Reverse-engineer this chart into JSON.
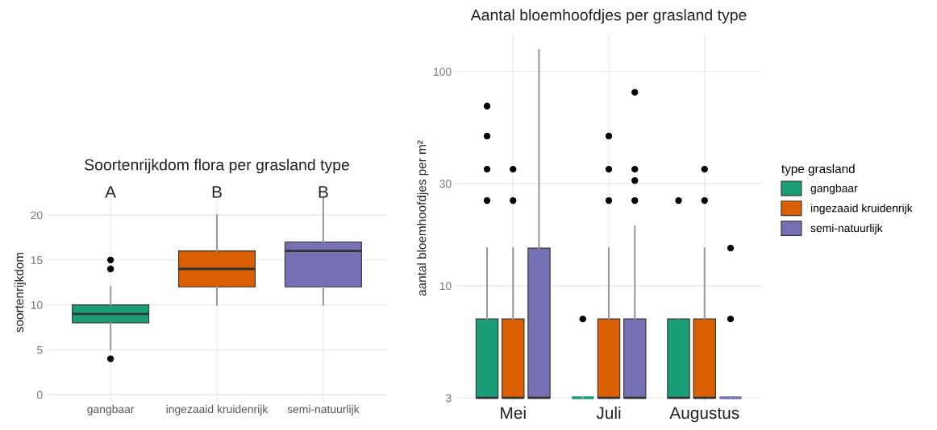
{
  "chart_data": [
    {
      "type": "box",
      "title": "Soortenrijkdom flora per grasland type",
      "ylabel": "soortenrijkdom",
      "categories": [
        "gangbaar",
        "ingezaaid kruidenrijk",
        "semi-natuurlijk"
      ],
      "colors": [
        "#1b9e77",
        "#d95f02",
        "#7570b3"
      ],
      "boxes": [
        {
          "low": 5,
          "q1": 8,
          "median": 9,
          "q3": 10,
          "high": 12,
          "outliers": [
            4,
            14,
            15
          ]
        },
        {
          "low": 10,
          "q1": 12,
          "median": 14,
          "q3": 16,
          "high": 20
        },
        {
          "low": 10,
          "q1": 12,
          "median": 16,
          "q3": 17,
          "high": 22
        }
      ],
      "ylim": [
        -0.7,
        23.5
      ],
      "yticks": [
        0,
        5,
        10,
        15,
        20
      ],
      "grid": true,
      "annotations": [
        "A",
        "B",
        "B"
      ]
    },
    {
      "type": "box",
      "title": "Aantal bloemhoofdjes per grasland type",
      "ylabel": "aantal bloemhoofdjes per m²",
      "categories": [
        "Mei",
        "Juli",
        "Augustus"
      ],
      "log": true,
      "ylim": [
        2.85,
        150
      ],
      "yticks": [
        3,
        10,
        30,
        100
      ],
      "grid": true,
      "legend": "right",
      "legend_title": "type grasland",
      "series": [
        {
          "name": "gangbaar",
          "color": "#1b9e77",
          "boxes": [
            {
              "low": 3,
              "q1": 3,
              "median": 3,
              "q3": 7,
              "high": 15,
              "outliers": [
                25,
                35,
                50,
                69
              ]
            },
            {
              "low": 3,
              "q1": 3,
              "median": 3,
              "q3": 3,
              "high": 3,
              "outliers": [
                7
              ]
            },
            {
              "low": 3,
              "q1": 3,
              "median": 3,
              "q3": 7,
              "high": 7,
              "outliers": [
                25
              ]
            }
          ]
        },
        {
          "name": "ingezaaid kruidenrijk",
          "color": "#d95f02",
          "boxes": [
            {
              "low": 3,
              "q1": 3,
              "median": 3,
              "q3": 7,
              "high": 15,
              "outliers": [
                25,
                35
              ]
            },
            {
              "low": 3,
              "q1": 3,
              "median": 3,
              "q3": 7,
              "high": 15,
              "outliers": [
                25,
                35,
                50
              ]
            },
            {
              "low": 3,
              "q1": 3,
              "median": 3,
              "q3": 7,
              "high": 15,
              "outliers": [
                25,
                35
              ]
            }
          ]
        },
        {
          "name": "semi-natuurlijk",
          "color": "#7570b3",
          "boxes": [
            {
              "low": 3,
              "q1": 3,
              "median": 3,
              "q3": 15,
              "high": 126
            },
            {
              "low": 3,
              "q1": 3,
              "median": 3,
              "q3": 7,
              "high": 19,
              "outliers": [
                25,
                31,
                35,
                80
              ]
            },
            {
              "low": 3,
              "q1": 3,
              "median": 3,
              "q3": 3,
              "high": 3,
              "outliers": [
                7,
                15
              ]
            }
          ]
        }
      ]
    }
  ]
}
